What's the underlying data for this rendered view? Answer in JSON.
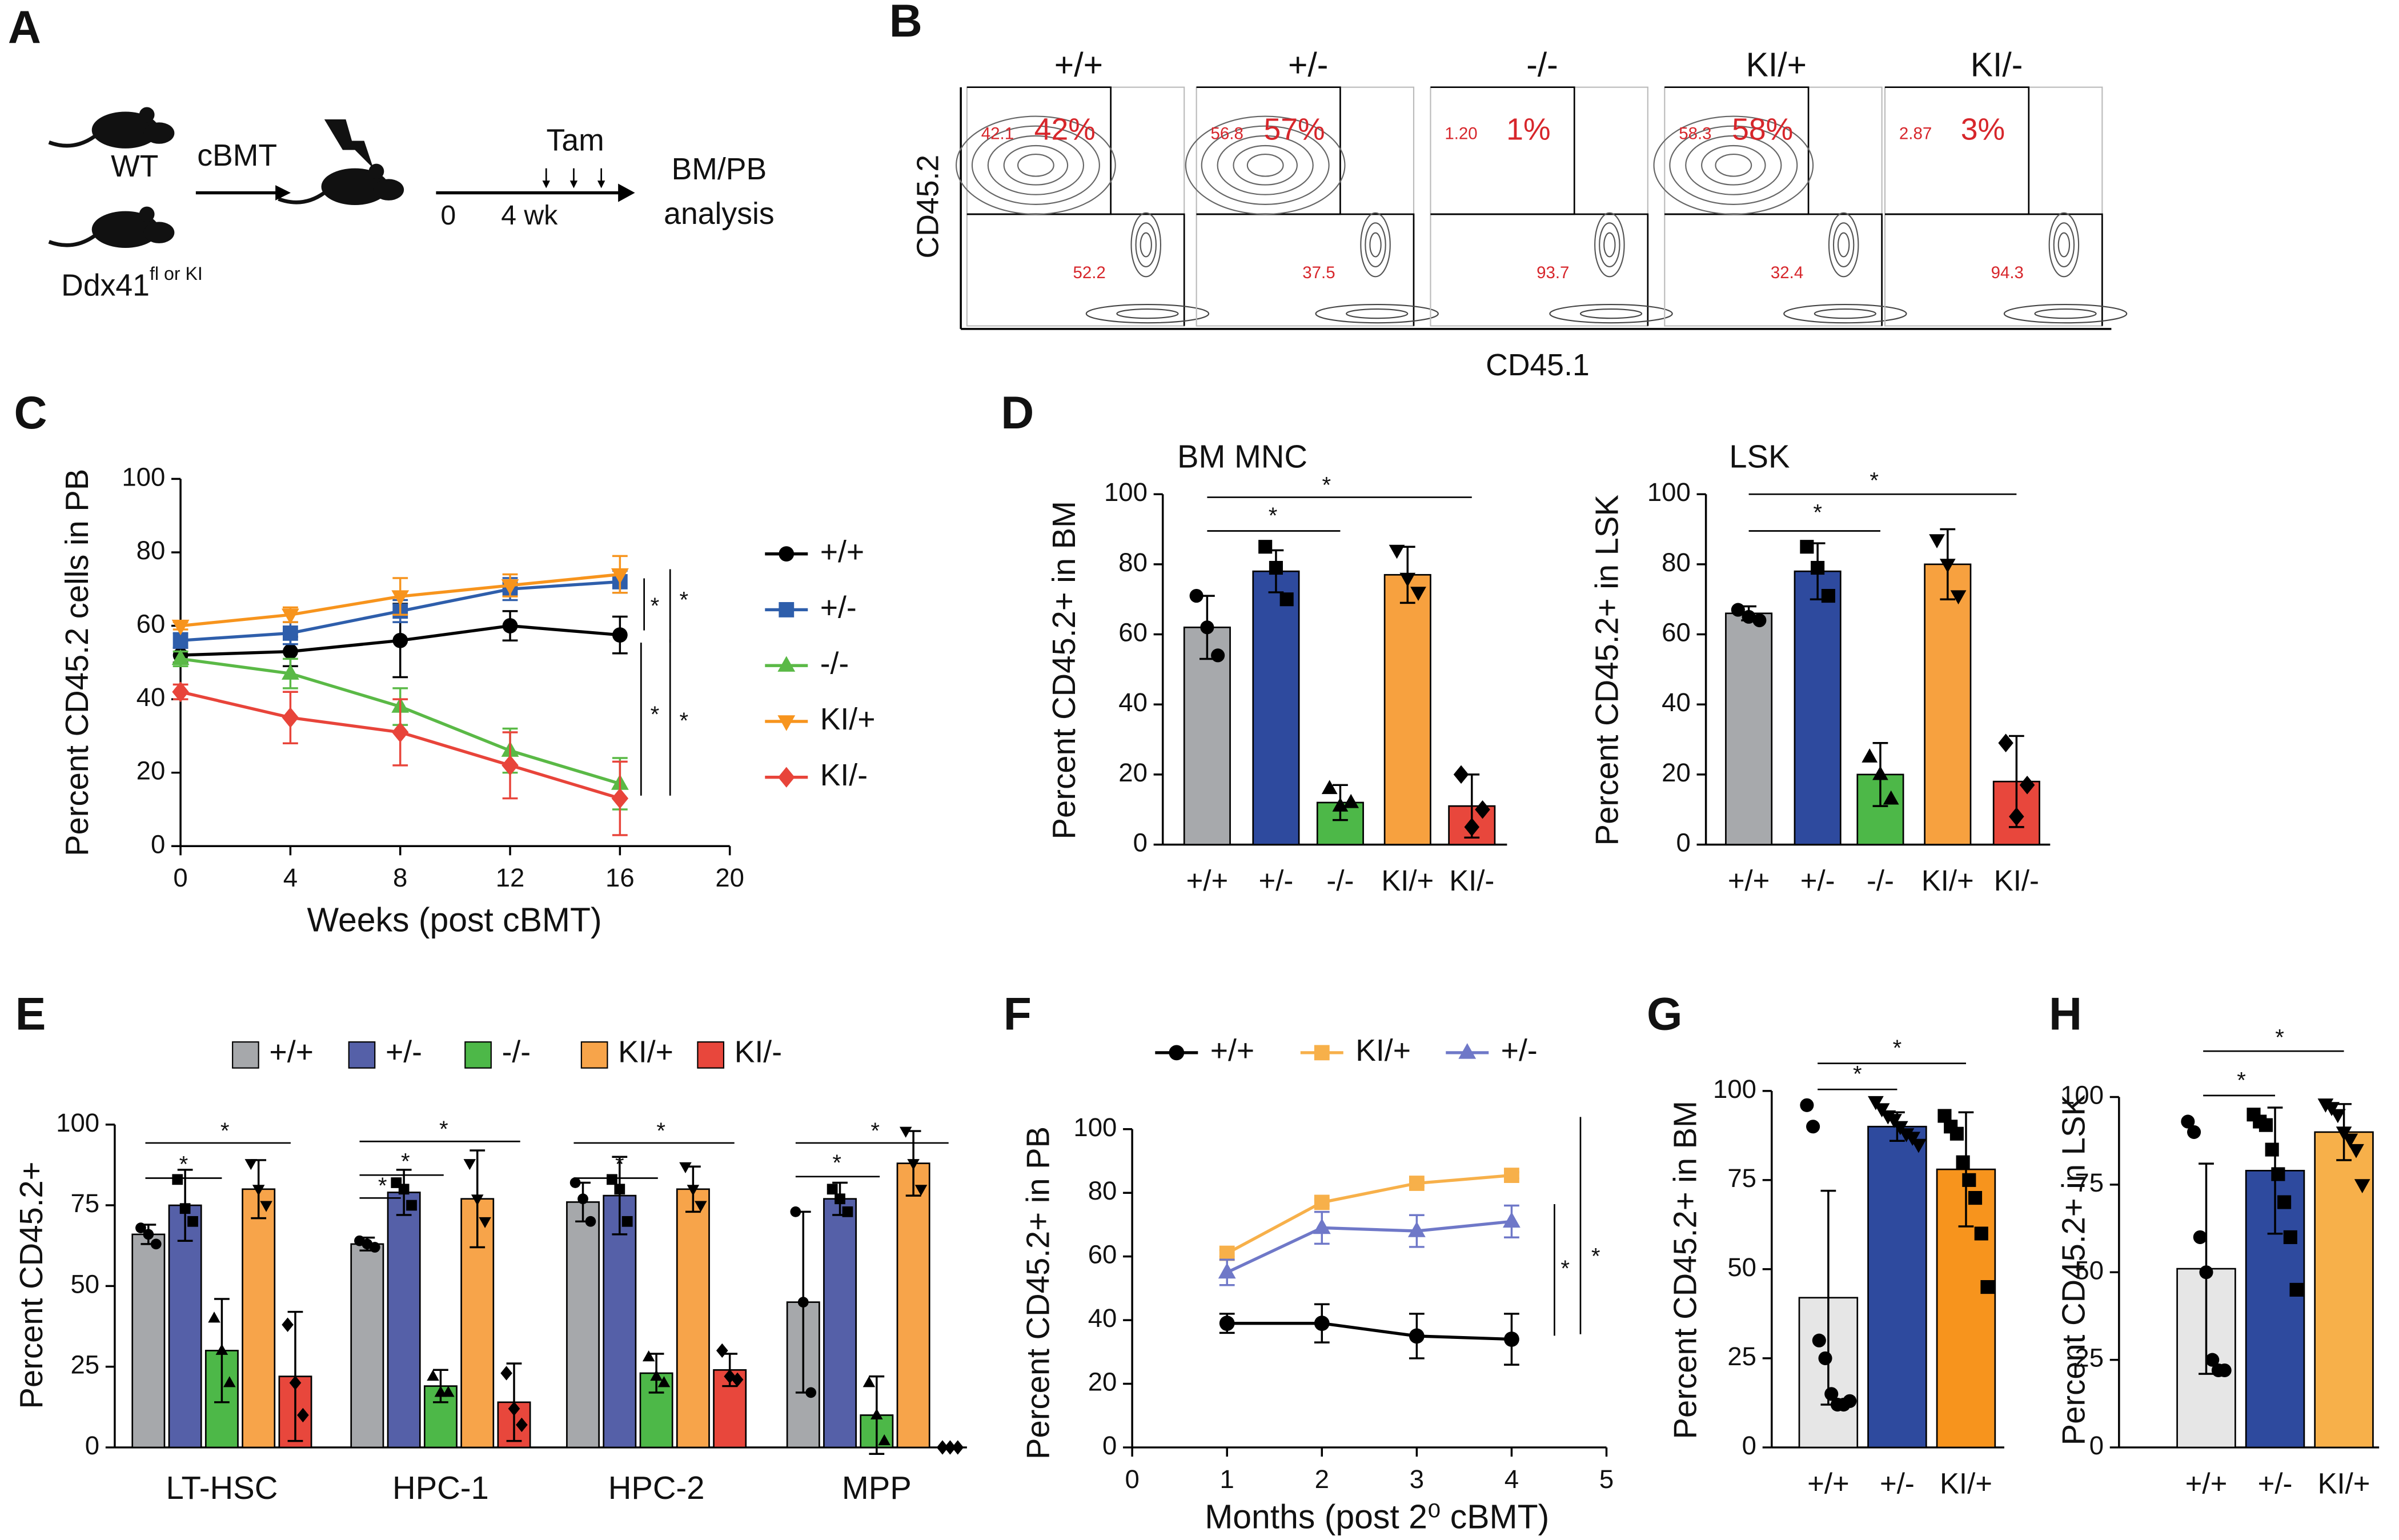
{
  "panel_a": {
    "label": "A",
    "wt": "WT",
    "cbmt": "cBMT",
    "gene": "Ddx41",
    "gene_sup": "fl or KI",
    "tam": "Tam",
    "t0": "0",
    "t4": "4 wk",
    "out1": "BM/PB",
    "out2": "analysis"
  },
  "panel_b": {
    "label": "B",
    "y_label": "CD45.2",
    "x_label": "CD45.1",
    "plots": [
      {
        "genotype": "+/+",
        "percent": "42%",
        "upper": "42.1",
        "lower": "52.2"
      },
      {
        "genotype": "+/-",
        "percent": "57%",
        "upper": "56.8",
        "lower": "37.5"
      },
      {
        "genotype": "-/-",
        "percent": "1%",
        "upper": "1.20",
        "lower": "93.7"
      },
      {
        "genotype": "KI/+",
        "percent": "58%",
        "upper": "58.3",
        "lower": "32.4"
      },
      {
        "genotype": "KI/-",
        "percent": "3%",
        "upper": "2.87",
        "lower": "94.3"
      }
    ]
  },
  "chart_data": [
    {
      "type": "line",
      "panel": "C",
      "y_label": "Percent CD45.2 cells in PB",
      "x_label": "Weeks (post cBMT)",
      "x": [
        0,
        4,
        8,
        12,
        16
      ],
      "xlim": [
        0,
        20
      ],
      "xticks": [
        0,
        4,
        8,
        12,
        16,
        20
      ],
      "ylim": [
        0,
        100
      ],
      "yticks": [
        0,
        20,
        40,
        60,
        80,
        100
      ],
      "legend": "right",
      "series": [
        {
          "name": "+/+",
          "color": "#000000",
          "marker": "circle",
          "values": [
            52,
            53,
            56,
            60,
            57.5
          ],
          "errors": [
            2,
            4,
            10,
            4,
            5
          ]
        },
        {
          "name": "+/-",
          "color": "#2e5eab",
          "marker": "square",
          "values": [
            56,
            58,
            64,
            70,
            72
          ],
          "errors": [
            2,
            3,
            3,
            3,
            3
          ]
        },
        {
          "name": "-/-",
          "color": "#5ab946",
          "marker": "triangle",
          "values": [
            51,
            47,
            38,
            26,
            17
          ],
          "errors": [
            2,
            4,
            5,
            6,
            7
          ]
        },
        {
          "name": "KI/+",
          "color": "#f7941d",
          "marker": "triangle-down",
          "values": [
            60,
            63,
            68,
            71,
            74
          ],
          "errors": [
            1,
            2,
            5,
            3,
            5
          ]
        },
        {
          "name": "KI/-",
          "color": "#e8443a",
          "marker": "diamond",
          "values": [
            42,
            35,
            31,
            22,
            13
          ],
          "errors": [
            2,
            7,
            9,
            9,
            10
          ]
        }
      ],
      "significance": [
        "*",
        "*",
        "*",
        "*"
      ]
    },
    {
      "type": "bar",
      "panel": "D",
      "title": "BM MNC",
      "y_label": "Percent CD45.2+ in BM",
      "categories": [
        "+/+",
        "+/-",
        "-/-",
        "KI/+",
        "KI/-"
      ],
      "values": [
        62,
        78,
        12,
        77,
        11
      ],
      "errors": [
        9,
        6,
        5,
        8,
        9
      ],
      "colors": [
        "#a7a9ac",
        "#2e4a9e",
        "#4db848",
        "#f7a13f",
        "#e8473c"
      ],
      "markers": [
        "circle",
        "square",
        "triangle",
        "triangle-down",
        "diamond"
      ],
      "points": [
        [
          71,
          62,
          54
        ],
        [
          85,
          79,
          70
        ],
        [
          16,
          11,
          12
        ],
        [
          84,
          76,
          72
        ],
        [
          20,
          5,
          10
        ]
      ],
      "ylim": [
        0,
        100
      ],
      "yticks": [
        0,
        20,
        40,
        60,
        80,
        100
      ],
      "significance": [
        "*",
        "*"
      ]
    },
    {
      "type": "bar",
      "title": "LSK",
      "y_label": "Percent CD45.2+ in LSK",
      "categories": [
        "+/+",
        "+/-",
        "-/-",
        "KI/+",
        "KI/-"
      ],
      "values": [
        66,
        78,
        20,
        80,
        18
      ],
      "errors": [
        2,
        8,
        9,
        10,
        13
      ],
      "colors": [
        "#a7a9ac",
        "#2e4a9e",
        "#4db848",
        "#f7a13f",
        "#e8473c"
      ],
      "markers": [
        "circle",
        "square",
        "triangle",
        "triangle-down",
        "diamond"
      ],
      "points": [
        [
          67,
          65,
          64
        ],
        [
          85,
          79,
          71
        ],
        [
          25,
          20,
          13
        ],
        [
          87,
          80,
          71
        ],
        [
          29,
          8,
          17
        ]
      ],
      "ylim": [
        0,
        100
      ],
      "yticks": [
        0,
        20,
        40,
        60,
        80,
        100
      ],
      "significance": [
        "*",
        "*"
      ]
    },
    {
      "type": "bar",
      "panel": "E",
      "y_label": "Percent CD45.2+",
      "categories": [
        "LT-HSC",
        "HPC-1",
        "HPC-2",
        "MPP"
      ],
      "ylim": [
        0,
        100
      ],
      "yticks": [
        0,
        25,
        50,
        75,
        100
      ],
      "legend": "top",
      "series": [
        {
          "name": "+/+",
          "color": "#a6a8ab",
          "marker": "circle",
          "values": [
            66,
            63,
            76,
            45
          ],
          "errors": [
            3,
            2,
            6,
            28
          ],
          "points": [
            [
              68,
              66,
              63
            ],
            [
              64,
              63,
              62
            ],
            [
              82,
              77,
              70
            ],
            [
              73,
              45,
              17
            ]
          ]
        },
        {
          "name": "+/-",
          "color": "#5560a8",
          "marker": "square",
          "values": [
            75,
            79,
            78,
            77
          ],
          "errors": [
            11,
            7,
            12,
            5
          ],
          "points": [
            [
              83,
              74,
              70
            ],
            [
              82,
              80,
              75
            ],
            [
              83,
              80,
              70
            ],
            [
              80,
              77,
              73
            ]
          ]
        },
        {
          "name": "-/-",
          "color": "#4db848",
          "marker": "triangle",
          "values": [
            30,
            19,
            23,
            10
          ],
          "errors": [
            16,
            5,
            6,
            12
          ],
          "points": [
            [
              40,
              30,
              20
            ],
            [
              22,
              17,
              17
            ],
            [
              28,
              22,
              20
            ],
            [
              20,
              10,
              2
            ]
          ]
        },
        {
          "name": "KI/+",
          "color": "#f7a44a",
          "marker": "triangle-down",
          "values": [
            80,
            77,
            80,
            88
          ],
          "errors": [
            9,
            15,
            7,
            10
          ],
          "points": [
            [
              88,
              80,
              75
            ],
            [
              88,
              77,
              70
            ],
            [
              87,
              80,
              75
            ],
            [
              98,
              88,
              80
            ]
          ]
        },
        {
          "name": "KI/-",
          "color": "#e8473c",
          "marker": "diamond",
          "values": [
            22,
            14,
            24,
            0
          ],
          "errors": [
            20,
            12,
            5,
            0
          ],
          "points": [
            [
              38,
              20,
              10
            ],
            [
              23,
              12,
              7
            ],
            [
              30,
              22,
              21
            ],
            [
              0,
              0,
              0
            ]
          ]
        }
      ],
      "significance": [
        "*",
        "*",
        "*",
        "*",
        "*",
        "*",
        "*",
        "*",
        "*"
      ]
    },
    {
      "type": "line",
      "panel": "F",
      "y_label": "Percent CD45.2+ in PB",
      "x_label": "Months (post 2⁰ cBMT)",
      "x": [
        1,
        2,
        3,
        4
      ],
      "xlim": [
        0,
        5
      ],
      "xticks": [
        0,
        1,
        2,
        3,
        4,
        5
      ],
      "ylim": [
        0,
        100
      ],
      "yticks": [
        0,
        20,
        40,
        60,
        80,
        100
      ],
      "legend": "top",
      "series": [
        {
          "name": "+/+",
          "color": "#000000",
          "marker": "circle",
          "values": [
            39,
            39,
            35,
            34
          ],
          "errors": [
            3,
            6,
            7,
            8
          ]
        },
        {
          "name": "KI/+",
          "color": "#f7b04a",
          "marker": "square",
          "values": [
            61,
            77,
            83,
            85.5
          ],
          "errors": [
            1,
            1,
            1,
            1
          ]
        },
        {
          "name": "+/-",
          "color": "#6f78c8",
          "marker": "triangle",
          "values": [
            55,
            69,
            68,
            71
          ],
          "errors": [
            4,
            5,
            5,
            5
          ]
        }
      ],
      "significance": [
        "*",
        "*"
      ]
    },
    {
      "type": "bar",
      "panel": "G",
      "y_label": "Percent CD45.2+ in  BM",
      "categories": [
        "+/+",
        "+/-",
        "KI/+"
      ],
      "values": [
        42,
        90,
        78
      ],
      "errors": [
        30,
        4,
        16
      ],
      "colors": [
        "#e6e6e6",
        "#2e4a9e",
        "#f7941d"
      ],
      "markers": [
        "circle",
        "triangle-down",
        "square"
      ],
      "points": [
        [
          96,
          90,
          30,
          25,
          15,
          12,
          12,
          13
        ],
        [
          97,
          95,
          93,
          92,
          90,
          88,
          87,
          85
        ],
        [
          93,
          90,
          88,
          80,
          75,
          70,
          60,
          45
        ]
      ],
      "ylim": [
        0,
        100
      ],
      "yticks": [
        0,
        25,
        50,
        75,
        100
      ],
      "significance": [
        "*",
        "*"
      ]
    },
    {
      "type": "bar",
      "panel": "H",
      "y_label": "Percent CD45.2+ in LSK",
      "categories": [
        "+/+",
        "+/-",
        "KI/+"
      ],
      "values": [
        51,
        79,
        90
      ],
      "errors": [
        30,
        18,
        8
      ],
      "colors": [
        "#e6e6e6",
        "#2e4a9e",
        "#f7b04a"
      ],
      "markers": [
        "circle",
        "square",
        "triangle-down"
      ],
      "points": [
        [
          93,
          90,
          60,
          50,
          25,
          22,
          22
        ],
        [
          95,
          93,
          92,
          85,
          78,
          70,
          60,
          45
        ],
        [
          98,
          97,
          95,
          90,
          88,
          85,
          75
        ]
      ],
      "ylim": [
        0,
        100
      ],
      "yticks": [
        0,
        25,
        50,
        75,
        100
      ],
      "significance": [
        "*",
        "*"
      ]
    }
  ]
}
